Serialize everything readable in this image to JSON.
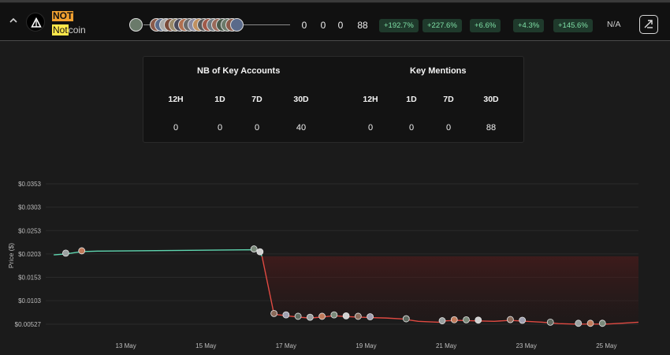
{
  "token": {
    "symbol": "NOT",
    "name_highlight": "Not",
    "name_rest": "coin"
  },
  "header_stats": [
    "0",
    "0",
    "0",
    "88"
  ],
  "changes": [
    "+192.7%",
    "+227.6%",
    "+6.6%",
    "+4.3%",
    "+145.6%"
  ],
  "na_label": "N/A",
  "panel": {
    "key_accounts": {
      "title": "NB of Key Accounts",
      "columns": [
        "12H",
        "1D",
        "7D",
        "30D"
      ],
      "values": [
        "0",
        "0",
        "0",
        "40"
      ]
    },
    "key_mentions": {
      "title": "Key Mentions",
      "columns": [
        "12H",
        "1D",
        "7D",
        "30D"
      ],
      "values": [
        "0",
        "0",
        "0",
        "88"
      ]
    }
  },
  "colors": {
    "up_line": "#5fd6b0",
    "down_line": "#e04a42",
    "pill_bg": "#1f3a2c",
    "pill_text": "#7fe0a6",
    "symbol_badge": "#f0a030",
    "name_highlight": "#ffe84a"
  },
  "icons": [
    "chevron-up-icon",
    "notcoin-logo",
    "external-link-icon"
  ],
  "chart_data": {
    "type": "line",
    "ylabel": "Price ($)",
    "y_ticks": [
      "$0.0353",
      "$0.0303",
      "$0.0253",
      "$0.0203",
      "$0.0153",
      "$0.0103",
      "$0.00527"
    ],
    "y_tick_values": [
      0.0353,
      0.0303,
      0.0253,
      0.0203,
      0.0153,
      0.0103,
      0.00527
    ],
    "x_ticks": [
      "13 May",
      "15 May",
      "17 May",
      "19 May",
      "21 May",
      "23 May",
      "25 May"
    ],
    "x_tick_days": [
      13,
      15,
      17,
      19,
      21,
      23,
      25
    ],
    "ylim": [
      0.00527,
      0.0353
    ],
    "grid": true,
    "series": [
      {
        "points": [
          [
            11.2,
            0.0201
          ],
          [
            11.5,
            0.0203
          ],
          [
            11.9,
            0.0208
          ],
          [
            12.3,
            0.0209
          ],
          [
            16.2,
            0.0212
          ],
          [
            16.35,
            0.0206
          ],
          [
            16.4,
            0.0198
          ]
        ]
      },
      {
        "points": [
          [
            16.4,
            0.0198
          ],
          [
            16.7,
            0.0074
          ],
          [
            17.0,
            0.0071
          ],
          [
            17.3,
            0.0068
          ],
          [
            17.6,
            0.0066
          ],
          [
            17.9,
            0.0068
          ],
          [
            18.2,
            0.0071
          ],
          [
            18.5,
            0.0069
          ],
          [
            18.8,
            0.0068
          ],
          [
            19.1,
            0.0067
          ],
          [
            19.5,
            0.0066
          ],
          [
            19.9,
            0.0064
          ],
          [
            20.3,
            0.0059
          ],
          [
            20.8,
            0.0057
          ],
          [
            21.0,
            0.006
          ],
          [
            21.3,
            0.0061
          ],
          [
            21.7,
            0.006
          ],
          [
            22.2,
            0.0059
          ],
          [
            22.6,
            0.0061
          ],
          [
            23.0,
            0.0059
          ],
          [
            23.4,
            0.0057
          ],
          [
            23.8,
            0.0054
          ],
          [
            24.2,
            0.0053
          ],
          [
            24.6,
            0.0053
          ],
          [
            25.0,
            0.0053
          ],
          [
            25.4,
            0.0055
          ],
          [
            25.8,
            0.0057
          ]
        ]
      }
    ],
    "mention_days": [
      11.5,
      11.9,
      16.2,
      16.35,
      16.7,
      17.0,
      17.3,
      17.6,
      17.9,
      18.2,
      18.5,
      18.8,
      19.1,
      20.0,
      20.9,
      21.2,
      21.5,
      21.8,
      22.6,
      22.9,
      23.6,
      24.3,
      24.6,
      24.9
    ]
  }
}
